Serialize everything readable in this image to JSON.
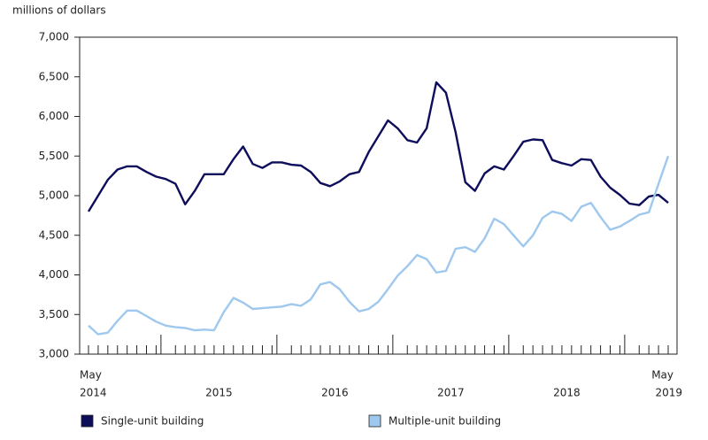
{
  "chart_data": {
    "type": "line",
    "y_axis_label": "millions of dollars",
    "categories": [
      "May",
      null,
      null,
      null,
      null,
      null,
      null,
      null,
      null,
      null,
      null,
      null,
      null,
      null,
      null,
      null,
      null,
      null,
      null,
      null,
      null,
      null,
      null,
      null,
      null,
      null,
      null,
      null,
      null,
      null,
      null,
      null,
      null,
      null,
      null,
      null,
      null,
      null,
      null,
      null,
      null,
      null,
      null,
      null,
      null,
      null,
      null,
      null,
      null,
      null,
      null,
      null,
      null,
      null,
      null,
      null,
      null,
      null,
      null,
      null,
      "May"
    ],
    "years": [
      "2014",
      "2015",
      "2016",
      "2017",
      "2018",
      "2019"
    ],
    "series": [
      {
        "name": "Single-unit building",
        "color": "#0d0d5c",
        "values": [
          4800,
          5000,
          5200,
          5330,
          5370,
          5370,
          5300,
          5240,
          5210,
          5150,
          4890,
          5060,
          5270,
          5270,
          5270,
          5460,
          5620,
          5400,
          5350,
          5420,
          5420,
          5390,
          5380,
          5300,
          5160,
          5120,
          5180,
          5270,
          5300,
          5550,
          5750,
          5950,
          5850,
          5700,
          5670,
          5850,
          6430,
          6300,
          5800,
          5170,
          5060,
          5280,
          5370,
          5330,
          5500,
          5680,
          5710,
          5700,
          5450,
          5410,
          5380,
          5460,
          5450,
          5240,
          5100,
          5010,
          4900,
          4880,
          4990,
          5010,
          4910
        ]
      },
      {
        "name": "Multiple-unit building",
        "color": "#9fc8ee",
        "values": [
          3360,
          3250,
          3270,
          3420,
          3550,
          3550,
          3480,
          3410,
          3360,
          3340,
          3330,
          3300,
          3310,
          3300,
          3530,
          3710,
          3650,
          3570,
          3580,
          3590,
          3600,
          3630,
          3610,
          3690,
          3880,
          3910,
          3820,
          3660,
          3540,
          3570,
          3660,
          3820,
          3990,
          4110,
          4250,
          4200,
          4030,
          4050,
          4330,
          4350,
          4290,
          4460,
          4710,
          4640,
          4500,
          4360,
          4500,
          4720,
          4800,
          4770,
          4680,
          4860,
          4910,
          4730,
          4570,
          4610,
          4680,
          4760,
          4790,
          5150,
          5500
        ]
      }
    ],
    "ylim": [
      3000,
      7000
    ],
    "yticks": [
      {
        "value": 3000,
        "label": "3,000"
      },
      {
        "value": 3500,
        "label": "3,500"
      },
      {
        "value": 4000,
        "label": "4,000"
      },
      {
        "value": 4500,
        "label": "4,500"
      },
      {
        "value": 5000,
        "label": "5,000"
      },
      {
        "value": 5500,
        "label": "5,500"
      },
      {
        "value": 6000,
        "label": "6,000"
      },
      {
        "value": 6500,
        "label": "6,500"
      },
      {
        "value": 7000,
        "label": "7,000"
      }
    ],
    "grid": false
  }
}
